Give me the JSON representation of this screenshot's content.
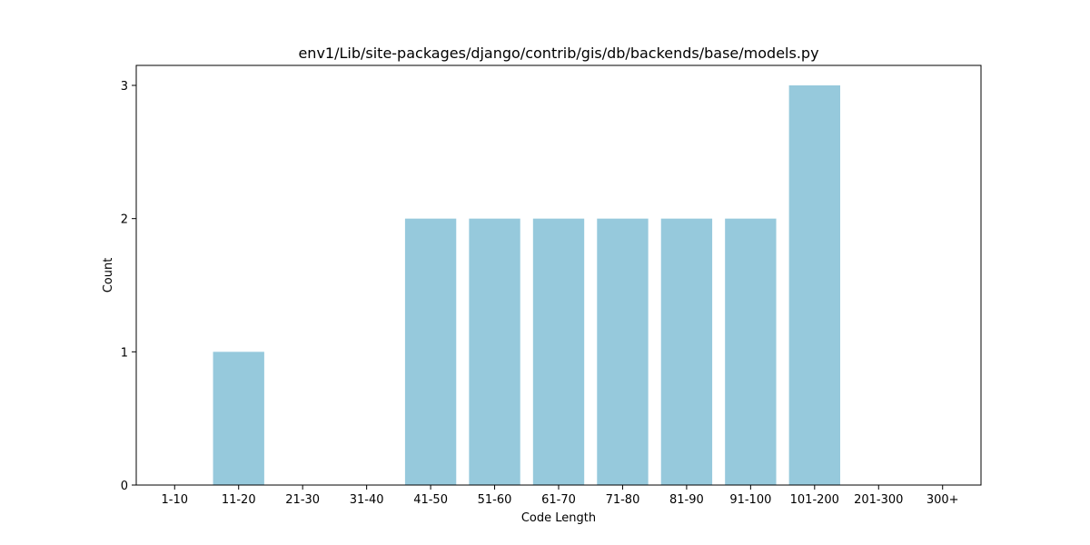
{
  "chart_data": {
    "type": "bar",
    "title": "env1/Lib/site-packages/django/contrib/gis/db/backends/base/models.py",
    "xlabel": "Code Length",
    "ylabel": "Count",
    "categories": [
      "1-10",
      "11-20",
      "21-30",
      "31-40",
      "41-50",
      "51-60",
      "61-70",
      "71-80",
      "81-90",
      "91-100",
      "101-200",
      "201-300",
      "300+"
    ],
    "values": [
      0,
      1,
      0,
      0,
      2,
      2,
      2,
      2,
      2,
      2,
      3,
      0,
      0
    ],
    "yticks": [
      "0",
      "1",
      "2",
      "3"
    ],
    "ylim": [
      0,
      3.15
    ],
    "grid": false,
    "legend": "none",
    "bar_color": "#96c9dc"
  }
}
